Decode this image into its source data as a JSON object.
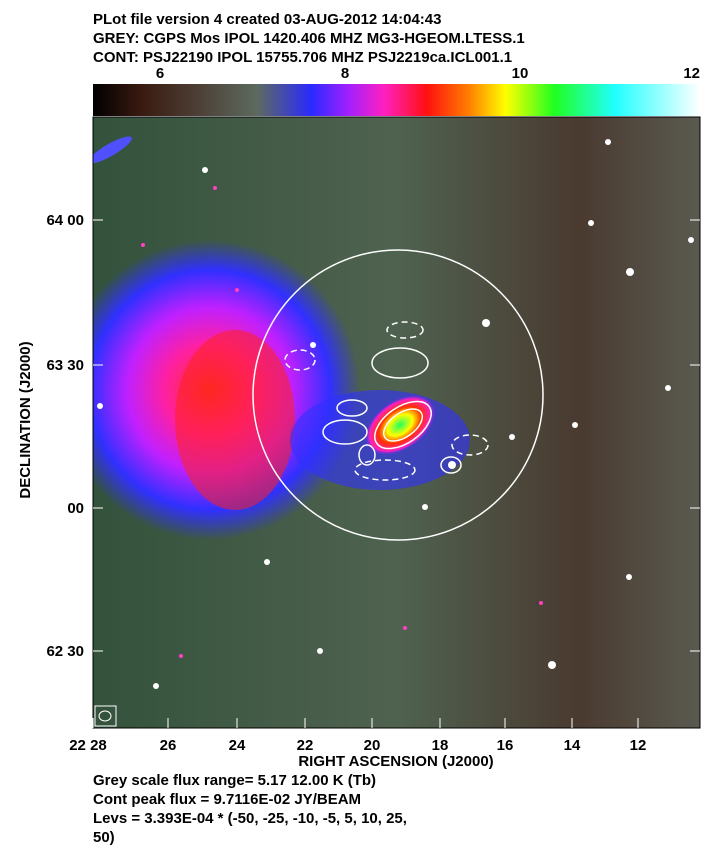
{
  "header": {
    "lines": [
      "PLot file version 4  created 03-AUG-2012 14:04:43",
      "GREY: CGPS Mos  IPOL  1420.406 MHZ  MG3-HGEOM.LTESS.1",
      "CONT: PSJ22190  IPOL  15755.706 MHZ  PSJ2219ca.ICL001.1"
    ]
  },
  "colorbar": {
    "ticks": [
      "6",
      "8",
      "10",
      "12"
    ]
  },
  "axes": {
    "x_label": "RIGHT ASCENSION (J2000)",
    "y_label": "DECLINATION (J2000)",
    "x_ticks": [
      "22 28",
      "26",
      "24",
      "22",
      "20",
      "18",
      "16",
      "14",
      "12"
    ],
    "y_ticks": [
      "64 00",
      "63 30",
      "00",
      "62 30"
    ]
  },
  "footer": {
    "lines": [
      "Grey scale flux range= 5.17 12.00 K (Tb)",
      "Cont peak flux =  9.7116E-02 JY/BEAM",
      "Levs = 3.393E-04 * (-50, -25, -10, -5, 5, 10, 25,",
      "50)"
    ]
  }
}
